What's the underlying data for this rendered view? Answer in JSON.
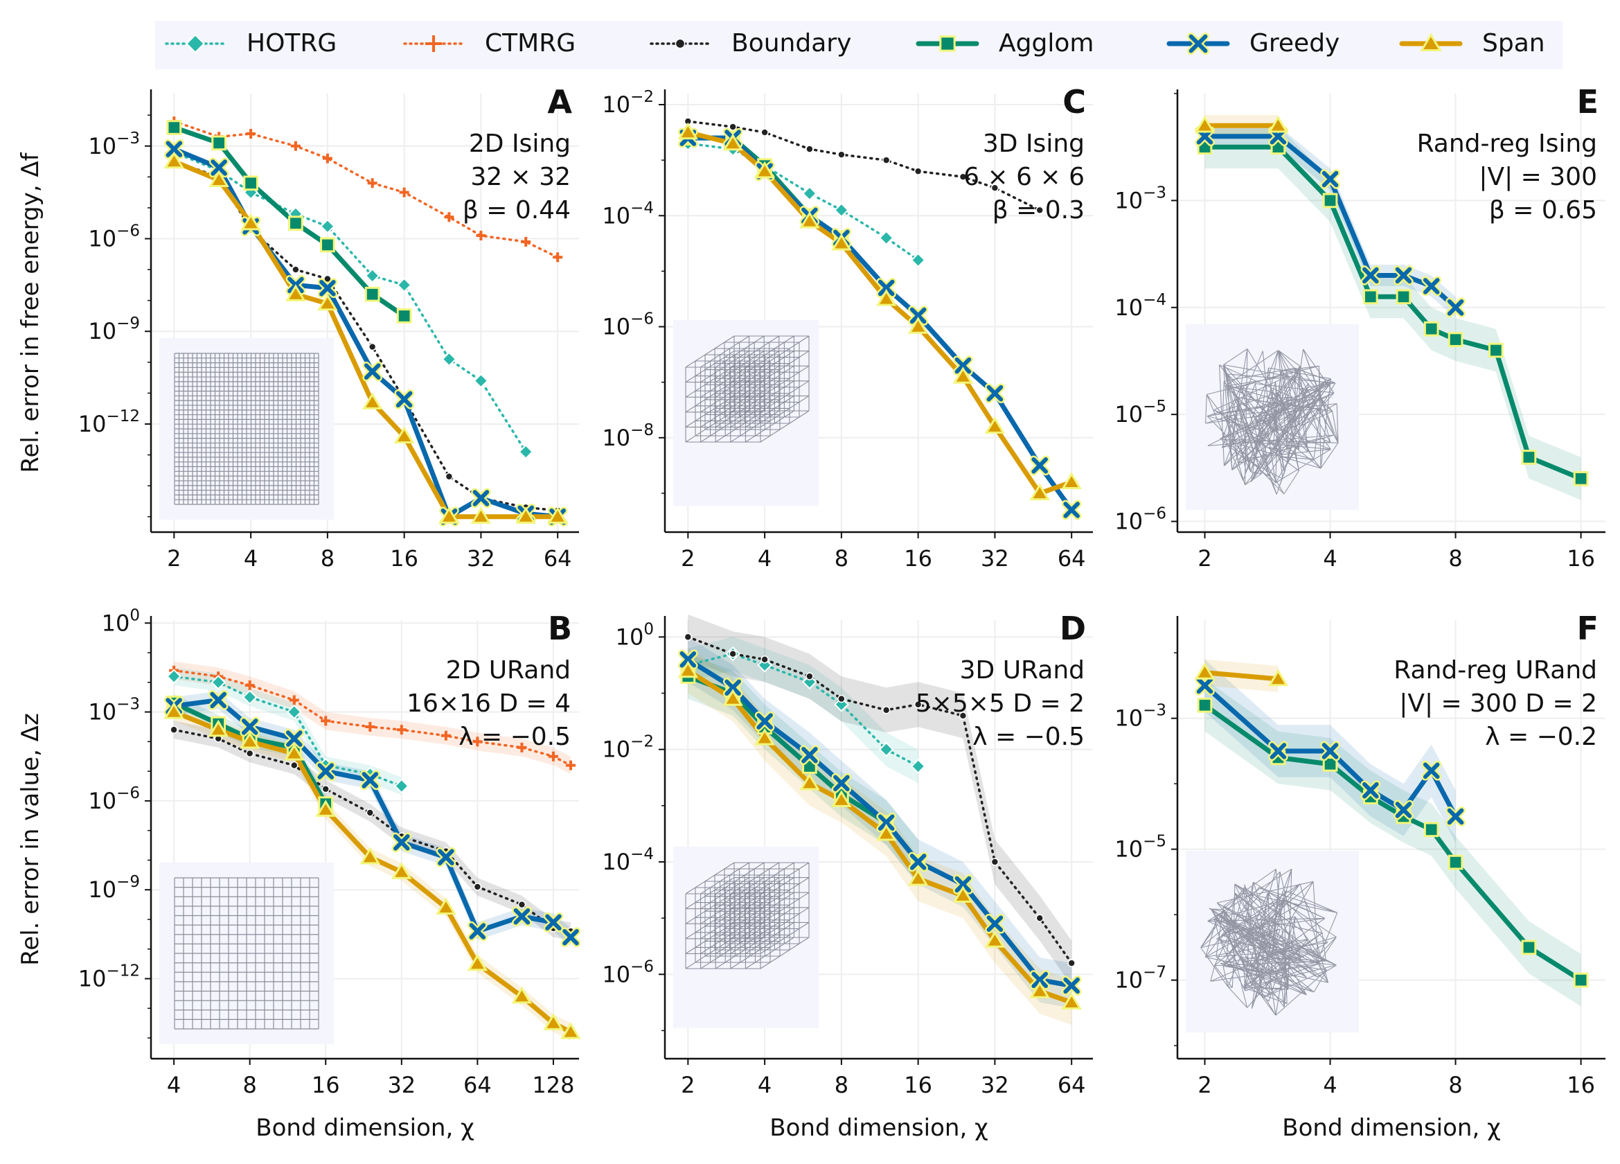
{
  "legend": {
    "entries": [
      {
        "key": "hotrg",
        "label": "HOTRG",
        "color": "#2ab7a9",
        "marker": "diamond",
        "style": "dotted"
      },
      {
        "key": "ctmrg",
        "label": "CTMRG",
        "color": "#f26522",
        "marker": "plus",
        "style": "dotted"
      },
      {
        "key": "boundary",
        "label": "Boundary",
        "color": "#222222",
        "marker": "dot",
        "style": "dotted"
      },
      {
        "key": "agglom",
        "label": "Agglom",
        "color": "#078a6c",
        "marker": "square",
        "style": "solid"
      },
      {
        "key": "greedy",
        "label": "Greedy",
        "color": "#0868ac",
        "marker": "x",
        "style": "solid"
      },
      {
        "key": "span",
        "label": "Span",
        "color": "#d99c00",
        "marker": "triangle",
        "style": "solid"
      }
    ]
  },
  "chart_data": [
    {
      "panel": "A",
      "type": "line",
      "row": 0,
      "col": 0,
      "annotation": [
        "2D Ising",
        "32 × 32",
        "β = 0.44"
      ],
      "inset": "square-lattice-fine",
      "xscale": "log2",
      "xlim": [
        1.75,
        72
      ],
      "xticks": [
        2,
        4,
        8,
        16,
        32,
        64
      ],
      "ylim_log10": [
        -15.5,
        -1.3
      ],
      "yticks_log10": [
        -3,
        -6,
        -9,
        -12
      ],
      "ylabel": "Rel. error in free energy, Δf",
      "xlabel": "",
      "series": [
        {
          "name": "CTMRG",
          "x": [
            2,
            3,
            4,
            6,
            8,
            12,
            16,
            24,
            32,
            48,
            64
          ],
          "y": [
            -2.2,
            -2.7,
            -2.6,
            -3.0,
            -3.4,
            -4.2,
            -4.5,
            -5.3,
            -5.9,
            -6.1,
            -6.6
          ]
        },
        {
          "name": "HOTRG",
          "x": [
            2,
            3,
            4,
            6,
            8,
            12,
            16,
            24,
            32,
            48
          ],
          "y": [
            -3.2,
            -3.8,
            -4.5,
            -5.2,
            -5.6,
            -7.2,
            -7.5,
            -9.9,
            -10.6,
            -12.9
          ]
        },
        {
          "name": "Boundary",
          "x": [
            2,
            3,
            4,
            6,
            8,
            12,
            16,
            24,
            32,
            48,
            64
          ],
          "y": [
            -3.5,
            -4.0,
            -5.7,
            -7.0,
            -7.3,
            -9.5,
            -11.2,
            -13.7,
            -14.4,
            -14.7,
            -14.8
          ]
        },
        {
          "name": "Agglom",
          "x": [
            2,
            3,
            4,
            6,
            8,
            12,
            16
          ],
          "y": [
            -2.4,
            -2.9,
            -4.2,
            -5.5,
            -6.2,
            -7.8,
            -8.5
          ]
        },
        {
          "name": "Greedy",
          "x": [
            2,
            3,
            4,
            6,
            8,
            12,
            16,
            24,
            32,
            48,
            64
          ],
          "y": [
            -3.1,
            -3.7,
            -5.6,
            -7.5,
            -7.6,
            -10.3,
            -11.2,
            -15.0,
            -14.4,
            -14.9,
            -15.0
          ]
        },
        {
          "name": "Span",
          "x": [
            2,
            3,
            4,
            6,
            8,
            12,
            16,
            24,
            32,
            48,
            64
          ],
          "y": [
            -3.5,
            -4.1,
            -5.5,
            -7.8,
            -8.1,
            -11.3,
            -12.4,
            -15.0,
            -15.0,
            -15.0,
            -15.0
          ]
        }
      ]
    },
    {
      "panel": "B",
      "type": "line",
      "row": 1,
      "col": 0,
      "annotation": [
        "2D URand",
        "16×16 D = 4",
        "λ = −0.5"
      ],
      "inset": "square-lattice-coarse",
      "xscale": "log2",
      "xlim": [
        3.5,
        150
      ],
      "xticks": [
        4,
        8,
        16,
        32,
        64,
        128
      ],
      "ylim_log10": [
        -14.7,
        0.1
      ],
      "yticks_log10": [
        0,
        -3,
        -6,
        -9,
        -12
      ],
      "ylabel": "Rel. error in value, Δz",
      "xlabel": "Bond dimension, χ",
      "series": [
        {
          "name": "CTMRG",
          "x": [
            4,
            6,
            8,
            12,
            16,
            24,
            32,
            48,
            64,
            96,
            128,
            150
          ],
          "y": [
            -1.6,
            -1.8,
            -2.1,
            -2.6,
            -3.3,
            -3.5,
            -3.6,
            -3.8,
            -4.0,
            -4.2,
            -4.5,
            -4.8
          ],
          "band": 0.3
        },
        {
          "name": "HOTRG",
          "x": [
            4,
            6,
            8,
            12,
            16,
            24,
            32
          ],
          "y": [
            -1.8,
            -2.0,
            -2.5,
            -3.0,
            -4.8,
            -5.1,
            -5.5
          ],
          "band": 0.3
        },
        {
          "name": "Boundary",
          "x": [
            4,
            6,
            8,
            12,
            16,
            24,
            32,
            48,
            64,
            96,
            128,
            150
          ],
          "y": [
            -3.6,
            -3.9,
            -4.4,
            -4.8,
            -5.6,
            -6.4,
            -7.2,
            -7.7,
            -8.9,
            -9.5,
            -10.3,
            -10.4
          ],
          "band": 0.3
        },
        {
          "name": "Agglom",
          "x": [
            4,
            6,
            8,
            12,
            16
          ],
          "y": [
            -2.7,
            -3.4,
            -3.9,
            -4.2,
            -6.1
          ],
          "band": 0.3
        },
        {
          "name": "Greedy",
          "x": [
            4,
            6,
            8,
            12,
            16,
            24,
            32,
            48,
            64,
            96,
            128,
            150
          ],
          "y": [
            -2.8,
            -2.6,
            -3.5,
            -3.9,
            -5.0,
            -5.3,
            -7.4,
            -7.9,
            -10.4,
            -9.9,
            -10.1,
            -10.6
          ],
          "band": 0.3
        },
        {
          "name": "Span",
          "x": [
            4,
            6,
            8,
            12,
            16,
            24,
            32,
            48,
            64,
            96,
            128,
            150
          ],
          "y": [
            -3.0,
            -3.6,
            -4.0,
            -4.4,
            -6.3,
            -7.9,
            -8.4,
            -9.6,
            -11.5,
            -12.6,
            -13.5,
            -13.8
          ],
          "band": 0.3
        }
      ]
    },
    {
      "panel": "C",
      "type": "line",
      "row": 0,
      "col": 1,
      "annotation": [
        "3D Ising",
        "6 × 6 × 6",
        "β = 0.3"
      ],
      "inset": "cubic-lattice",
      "xscale": "log2",
      "xlim": [
        1.75,
        72
      ],
      "xticks": [
        2,
        4,
        8,
        16,
        32,
        64
      ],
      "ylim_log10": [
        -9.7,
        -1.8
      ],
      "yticks_log10": [
        -2,
        -4,
        -6,
        -8
      ],
      "ylabel": "",
      "xlabel": "",
      "series": [
        {
          "name": "Boundary",
          "x": [
            2,
            3,
            4,
            6,
            8,
            12,
            16,
            24,
            32,
            48
          ],
          "y": [
            -2.3,
            -2.4,
            -2.5,
            -2.8,
            -2.9,
            -3.0,
            -3.2,
            -3.3,
            -3.5,
            -3.9
          ]
        },
        {
          "name": "HOTRG",
          "x": [
            2,
            3,
            4,
            6,
            8,
            12,
            16
          ],
          "y": [
            -2.7,
            -2.8,
            -3.1,
            -3.6,
            -3.9,
            -4.4,
            -4.8
          ]
        },
        {
          "name": "Agglom",
          "x": [
            2,
            3,
            4,
            6,
            8
          ],
          "y": [
            -2.6,
            -2.6,
            -3.1,
            -4.0,
            -4.4
          ]
        },
        {
          "name": "Greedy",
          "x": [
            2,
            3,
            4,
            6,
            8,
            12,
            16,
            24,
            32,
            48,
            64
          ],
          "y": [
            -2.6,
            -2.6,
            -3.2,
            -4.0,
            -4.4,
            -5.3,
            -5.8,
            -6.7,
            -7.2,
            -8.5,
            -9.3
          ]
        },
        {
          "name": "Span",
          "x": [
            2,
            3,
            4,
            6,
            8,
            12,
            16,
            24,
            32,
            48,
            64
          ],
          "y": [
            -2.5,
            -2.7,
            -3.2,
            -4.1,
            -4.5,
            -5.5,
            -6.0,
            -6.9,
            -7.8,
            -9.0,
            -8.8
          ]
        }
      ]
    },
    {
      "panel": "D",
      "type": "line",
      "row": 1,
      "col": 1,
      "annotation": [
        "3D URand",
        "5×5×5 D = 2",
        "λ = −0.5"
      ],
      "inset": "cubic-lattice",
      "xscale": "log2",
      "xlim": [
        1.75,
        72
      ],
      "xticks": [
        2,
        4,
        8,
        16,
        32,
        64
      ],
      "ylim_log10": [
        -7.5,
        0.3
      ],
      "yticks_log10": [
        0,
        -2,
        -4,
        -6
      ],
      "ylabel": "",
      "xlabel": "Bond dimension, χ",
      "series": [
        {
          "name": "Boundary",
          "x": [
            2,
            3,
            4,
            6,
            8,
            12,
            16,
            24,
            32,
            48,
            64
          ],
          "y": [
            0.0,
            -0.3,
            -0.4,
            -0.7,
            -1.1,
            -1.3,
            -1.2,
            -1.4,
            -4.0,
            -5.0,
            -5.8
          ],
          "band": 0.4
        },
        {
          "name": "HOTRG",
          "x": [
            2,
            3,
            4,
            6,
            8,
            12,
            16
          ],
          "y": [
            -0.5,
            -0.3,
            -0.5,
            -0.8,
            -1.2,
            -2.0,
            -2.3
          ],
          "band": 0.3
        },
        {
          "name": "Agglom",
          "x": [
            2,
            3,
            4,
            6,
            8,
            12,
            16
          ],
          "y": [
            -0.7,
            -1.0,
            -1.6,
            -2.3,
            -2.8,
            -3.3,
            -4.0
          ],
          "band": 0.4
        },
        {
          "name": "Greedy",
          "x": [
            2,
            3,
            4,
            6,
            8,
            12,
            16,
            24,
            32,
            48,
            64
          ],
          "y": [
            -0.4,
            -0.9,
            -1.5,
            -2.1,
            -2.6,
            -3.3,
            -4.0,
            -4.4,
            -5.1,
            -6.1,
            -6.2
          ],
          "band": 0.4
        },
        {
          "name": "Span",
          "x": [
            2,
            3,
            4,
            6,
            8,
            12,
            16,
            24,
            32,
            48,
            64
          ],
          "y": [
            -0.6,
            -1.1,
            -1.8,
            -2.6,
            -2.9,
            -3.5,
            -4.3,
            -4.6,
            -5.4,
            -6.3,
            -6.5
          ],
          "band": 0.4
        }
      ]
    },
    {
      "panel": "E",
      "type": "line",
      "row": 0,
      "col": 2,
      "annotation": [
        "Rand-reg Ising",
        "|V| = 300",
        "β = 0.65"
      ],
      "inset": "random-graph",
      "xscale": "log2",
      "xlim": [
        1.8,
        17.5
      ],
      "xticks": [
        2,
        4,
        8,
        16
      ],
      "ylim_log10": [
        -6.1,
        -2.0
      ],
      "yticks_log10": [
        -3,
        -4,
        -5,
        -6
      ],
      "ylabel": "",
      "xlabel": "",
      "series": [
        {
          "name": "Agglom",
          "x": [
            2,
            3,
            4,
            5,
            6,
            7,
            8,
            10,
            12,
            16
          ],
          "y": [
            -2.5,
            -2.5,
            -3.0,
            -3.9,
            -3.9,
            -4.2,
            -4.3,
            -4.4,
            -5.4,
            -5.6
          ],
          "band": 0.2
        },
        {
          "name": "Greedy",
          "x": [
            2,
            3,
            4,
            5,
            6,
            7,
            8
          ],
          "y": [
            -2.4,
            -2.4,
            -2.8,
            -3.7,
            -3.7,
            -3.8,
            -4.0
          ],
          "band": 0.1
        },
        {
          "name": "Span",
          "x": [
            2,
            3
          ],
          "y": [
            -2.3,
            -2.3
          ],
          "band": 0.1
        }
      ]
    },
    {
      "panel": "F",
      "type": "line",
      "row": 1,
      "col": 2,
      "annotation": [
        "Rand-reg URand",
        "|V| = 300 D = 2",
        "λ = −0.2"
      ],
      "inset": "random-graph",
      "xscale": "log2",
      "xlim": [
        1.8,
        17.5
      ],
      "xticks": [
        2,
        4,
        8,
        16
      ],
      "ylim_log10": [
        -8.2,
        -1.5
      ],
      "yticks_log10": [
        -3,
        -5,
        -7
      ],
      "ylabel": "",
      "xlabel": "Bond dimension, χ",
      "series": [
        {
          "name": "Agglom",
          "x": [
            2,
            3,
            4,
            5,
            6,
            7,
            8,
            12,
            16
          ],
          "y": [
            -2.8,
            -3.6,
            -3.7,
            -4.2,
            -4.5,
            -4.7,
            -5.2,
            -6.5,
            -7.0
          ],
          "band": 0.4
        },
        {
          "name": "Greedy",
          "x": [
            2,
            3,
            4,
            5,
            6,
            7,
            8
          ],
          "y": [
            -2.5,
            -3.5,
            -3.5,
            -4.1,
            -4.4,
            -3.8,
            -4.5
          ],
          "band": 0.4
        },
        {
          "name": "Span",
          "x": [
            2,
            3
          ],
          "y": [
            -2.3,
            -2.4
          ],
          "band": 0.2
        }
      ]
    }
  ]
}
